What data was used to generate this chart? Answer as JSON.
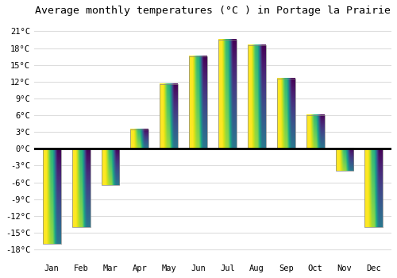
{
  "title": "Average monthly temperatures (°C ) in Portage la Prairie",
  "months": [
    "Jan",
    "Feb",
    "Mar",
    "Apr",
    "May",
    "Jun",
    "Jul",
    "Aug",
    "Sep",
    "Oct",
    "Nov",
    "Dec"
  ],
  "values": [
    -17,
    -14,
    -6.5,
    3.5,
    11.5,
    16.5,
    19.5,
    18.5,
    12.5,
    6.0,
    -4.0,
    -14
  ],
  "bar_color_light": "#FFD966",
  "bar_color_dark": "#FFA500",
  "bar_edge_color": "#888888",
  "background_color": "#FFFFFF",
  "grid_color": "#DDDDDD",
  "yticks": [
    -18,
    -15,
    -12,
    -9,
    -6,
    -3,
    0,
    3,
    6,
    9,
    12,
    15,
    18,
    21
  ],
  "ylim": [
    -20,
    23
  ],
  "zero_line_color": "#000000",
  "title_fontsize": 9.5,
  "tick_fontsize": 7.5,
  "font_family": "monospace"
}
